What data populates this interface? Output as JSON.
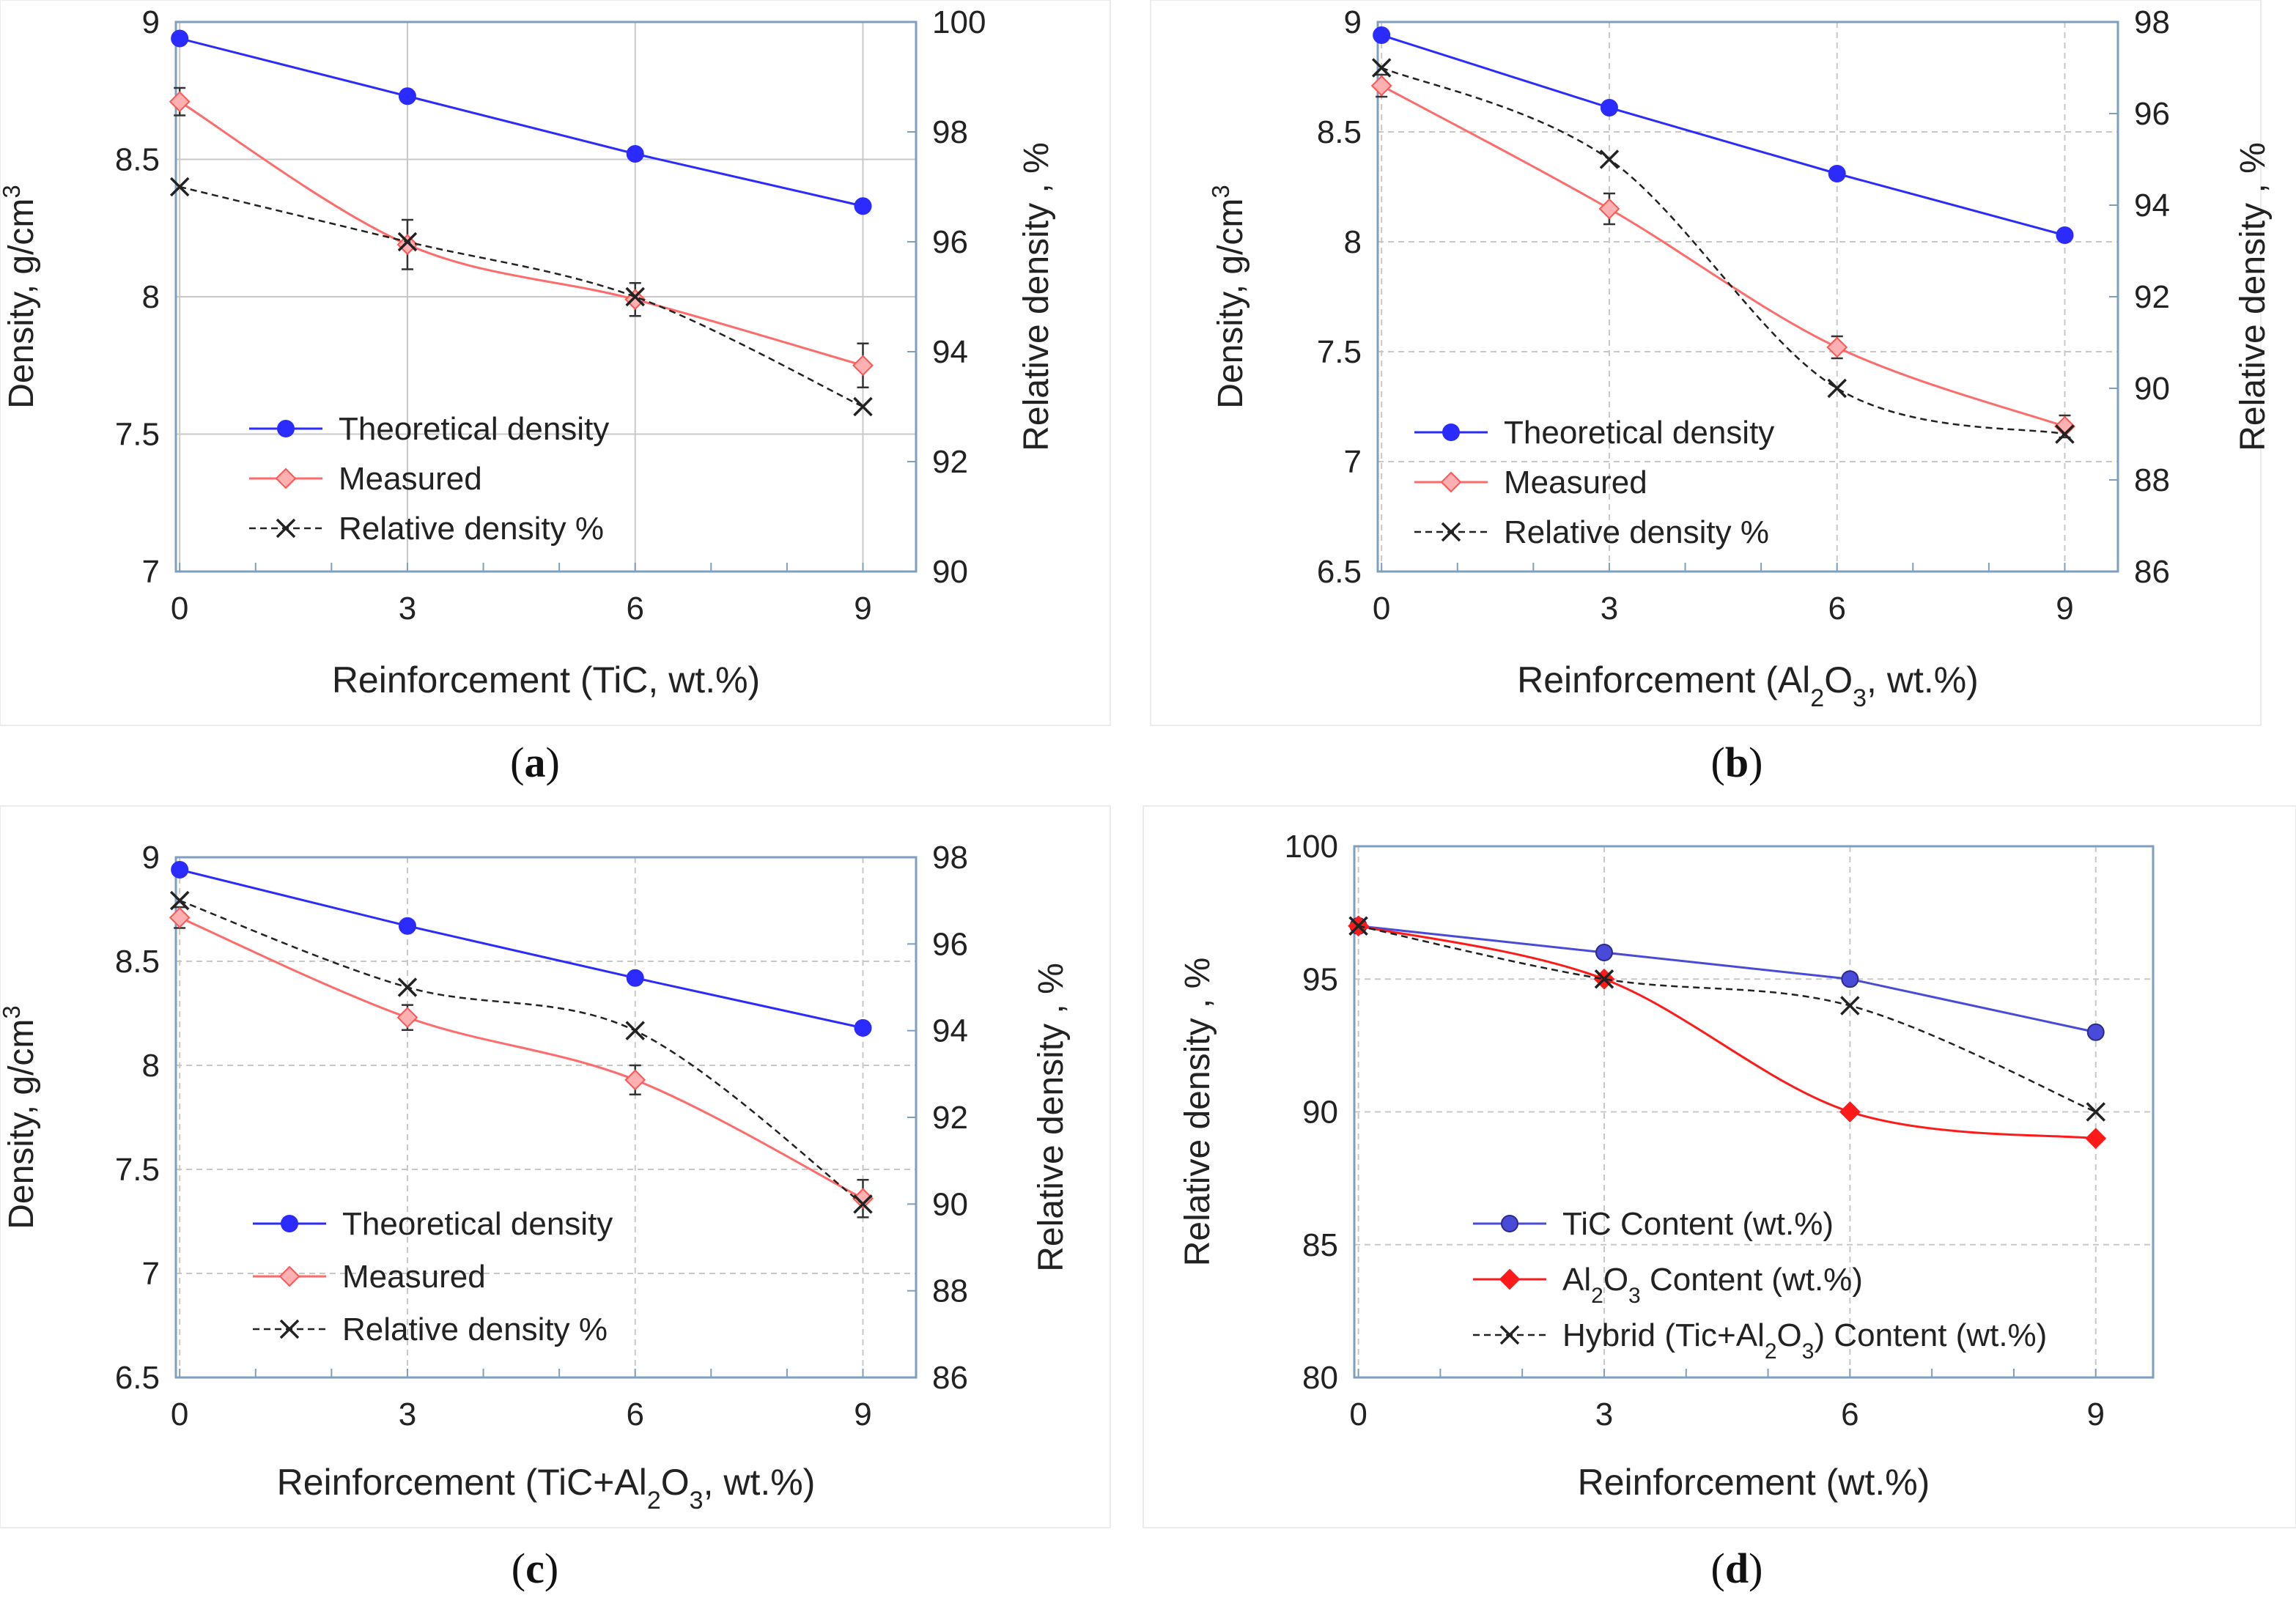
{
  "figure": {
    "panels": [
      "a",
      "b",
      "c",
      "d"
    ]
  },
  "colors": {
    "theoretical": "#2b2bff",
    "measured": "#ff6b6b",
    "relative": "#222222",
    "panel_d_tic": "#4a4ad8",
    "panel_d_al2o3": "#ff1a1a",
    "panel_d_hybrid": "#222222",
    "axes": "#7f9fbf",
    "grid": "#c8c8c8",
    "text": "#222222"
  },
  "chart_data": [
    {
      "id": "a",
      "caption": "a",
      "type": "line",
      "xlabel": "Reinforcement (TiC, wt.%)",
      "xlabel_parts": [
        {
          "t": "Reinforcement (TiC, wt.%)",
          "sub": false
        }
      ],
      "ylabel": "Density, g/cm3",
      "ylabel_parts": [
        {
          "t": "Density, g/cm",
          "sup": false
        },
        {
          "t": "3",
          "sup": true
        }
      ],
      "y2label": "Relative density , %",
      "x": [
        0,
        3,
        6,
        9
      ],
      "xticks": [
        "0",
        "3",
        "6",
        "9"
      ],
      "ylim": [
        7,
        9
      ],
      "yticks": [
        "7",
        "7.5",
        "8",
        "8.5",
        "9"
      ],
      "y2lim": [
        90,
        100
      ],
      "y2ticks": [
        "90",
        "92",
        "94",
        "96",
        "98",
        "100"
      ],
      "grid": "solid",
      "series": [
        {
          "name": "Theoretical density",
          "axis": "left",
          "marker": "circle",
          "style": "solid",
          "color_key": "theoretical",
          "values": [
            8.94,
            8.73,
            8.52,
            8.33
          ]
        },
        {
          "name": "Measured",
          "axis": "left",
          "marker": "diamond",
          "style": "solid",
          "color_key": "measured",
          "values": [
            8.71,
            8.19,
            7.99,
            7.75
          ],
          "errors": [
            0.05,
            0.09,
            0.06,
            0.08
          ]
        },
        {
          "name": "Relative density %",
          "axis": "right",
          "marker": "x",
          "style": "dashed",
          "color_key": "relative",
          "values": [
            97.0,
            96.0,
            95.0,
            93.0
          ]
        }
      ],
      "legend": [
        "Theoretical density",
        "Measured",
        "Relative density %"
      ]
    },
    {
      "id": "b",
      "caption": "b",
      "type": "line",
      "xlabel": "Reinforcement (Al2O3, wt.%)",
      "xlabel_parts": [
        {
          "t": "Reinforcement (Al",
          "sub": false
        },
        {
          "t": "2",
          "sub": true
        },
        {
          "t": "O",
          "sub": false
        },
        {
          "t": "3",
          "sub": true
        },
        {
          "t": ", wt.%)",
          "sub": false
        }
      ],
      "ylabel": "Density, g/cm3",
      "ylabel_parts": [
        {
          "t": "Density, g/cm",
          "sup": false
        },
        {
          "t": "3",
          "sup": true
        }
      ],
      "y2label": "Relative density , %",
      "x": [
        0,
        3,
        6,
        9
      ],
      "xticks": [
        "0",
        "3",
        "6",
        "9"
      ],
      "ylim": [
        6.5,
        9
      ],
      "yticks": [
        "6.5",
        "7",
        "7.5",
        "8",
        "8.5",
        "9"
      ],
      "y2lim": [
        86,
        98
      ],
      "y2ticks": [
        "86",
        "88",
        "90",
        "92",
        "94",
        "96",
        "98"
      ],
      "grid": "dashed",
      "series": [
        {
          "name": "Theoretical density",
          "axis": "left",
          "marker": "circle",
          "style": "solid",
          "color_key": "theoretical",
          "values": [
            8.94,
            8.61,
            8.31,
            8.03
          ]
        },
        {
          "name": "Measured",
          "axis": "left",
          "marker": "diamond",
          "style": "solid",
          "color_key": "measured",
          "values": [
            8.71,
            8.15,
            7.52,
            7.16
          ],
          "errors": [
            0.05,
            0.07,
            0.05,
            0.05
          ]
        },
        {
          "name": "Relative density %",
          "axis": "right",
          "marker": "x",
          "style": "dashed",
          "color_key": "relative",
          "values": [
            97.0,
            95.0,
            90.0,
            89.0
          ]
        }
      ],
      "legend": [
        "Theoretical density",
        "Measured",
        "Relative density %"
      ]
    },
    {
      "id": "c",
      "caption": "c",
      "type": "line",
      "xlabel": "Reinforcement (TiC+Al2O3, wt.%)",
      "xlabel_parts": [
        {
          "t": "Reinforcement (TiC+Al",
          "sub": false
        },
        {
          "t": "2",
          "sub": true
        },
        {
          "t": "O",
          "sub": false
        },
        {
          "t": "3",
          "sub": true
        },
        {
          "t": ", wt.%)",
          "sub": false
        }
      ],
      "ylabel": "Density, g/cm3",
      "ylabel_parts": [
        {
          "t": "Density, g/cm",
          "sup": false
        },
        {
          "t": "3",
          "sup": true
        }
      ],
      "y2label": "Relative density , %",
      "x": [
        0,
        3,
        6,
        9
      ],
      "xticks": [
        "0",
        "3",
        "6",
        "9"
      ],
      "ylim": [
        6.5,
        9
      ],
      "yticks": [
        "6.5",
        "7",
        "7.5",
        "8",
        "8.5",
        "9"
      ],
      "y2lim": [
        86,
        98
      ],
      "y2ticks": [
        "86",
        "88",
        "90",
        "92",
        "94",
        "96",
        "98"
      ],
      "grid": "dashed",
      "series": [
        {
          "name": "Theoretical density",
          "axis": "left",
          "marker": "circle",
          "style": "solid",
          "color_key": "theoretical",
          "values": [
            8.94,
            8.67,
            8.42,
            8.18
          ]
        },
        {
          "name": "Measured",
          "axis": "left",
          "marker": "diamond",
          "style": "solid",
          "color_key": "measured",
          "values": [
            8.71,
            8.23,
            7.93,
            7.36
          ],
          "errors": [
            0.05,
            0.06,
            0.07,
            0.09
          ]
        },
        {
          "name": "Relative density %",
          "axis": "right",
          "marker": "x",
          "style": "dashed",
          "color_key": "relative",
          "values": [
            97.0,
            95.0,
            94.0,
            90.0
          ]
        }
      ],
      "legend": [
        "Theoretical density",
        "Measured",
        "Relative density %"
      ]
    },
    {
      "id": "d",
      "caption": "d",
      "type": "line",
      "xlabel": "Reinforcement (wt.%)",
      "xlabel_parts": [
        {
          "t": "Reinforcement (wt.%)",
          "sub": false
        }
      ],
      "ylabel": "Relative density , %",
      "ylabel_parts": [
        {
          "t": "Relative density , %",
          "sup": false
        }
      ],
      "x": [
        0,
        3,
        6,
        9
      ],
      "xticks": [
        "0",
        "3",
        "6",
        "9"
      ],
      "ylim": [
        80,
        100
      ],
      "yticks": [
        "80",
        "85",
        "90",
        "95",
        "100"
      ],
      "grid": "dashed",
      "series": [
        {
          "name": "TiC Content (wt.%)",
          "label_parts": [
            {
              "t": "TiC Content (wt.%)",
              "sub": false
            }
          ],
          "axis": "left",
          "marker": "circle",
          "style": "solid",
          "color_key": "panel_d_tic",
          "values": [
            97.0,
            96.0,
            95.0,
            93.0
          ]
        },
        {
          "name": "Al2O3 Content (wt.%)",
          "label_parts": [
            {
              "t": "Al",
              "sub": false
            },
            {
              "t": "2",
              "sub": true
            },
            {
              "t": "O",
              "sub": false
            },
            {
              "t": "3",
              "sub": true
            },
            {
              "t": " Content (wt.%)",
              "sub": false
            }
          ],
          "axis": "left",
          "marker": "diamond",
          "style": "solid",
          "color_key": "panel_d_al2o3",
          "values": [
            97.0,
            95.0,
            90.0,
            89.0
          ]
        },
        {
          "name": "Hybrid (Tic+Al2O3) Content (wt.%)",
          "label_parts": [
            {
              "t": "Hybrid (Tic+Al",
              "sub": false
            },
            {
              "t": "2",
              "sub": true
            },
            {
              "t": "O",
              "sub": false
            },
            {
              "t": "3",
              "sub": true
            },
            {
              "t": ")  Content (wt.%)",
              "sub": false
            }
          ],
          "axis": "left",
          "marker": "x",
          "style": "dashed",
          "color_key": "panel_d_hybrid",
          "values": [
            97.0,
            95.0,
            94.0,
            90.0
          ]
        }
      ],
      "legend": [
        "TiC Content (wt.%)",
        "Al2O3 Content (wt.%)",
        "Hybrid (Tic+Al2O3)  Content (wt.%)"
      ]
    }
  ]
}
